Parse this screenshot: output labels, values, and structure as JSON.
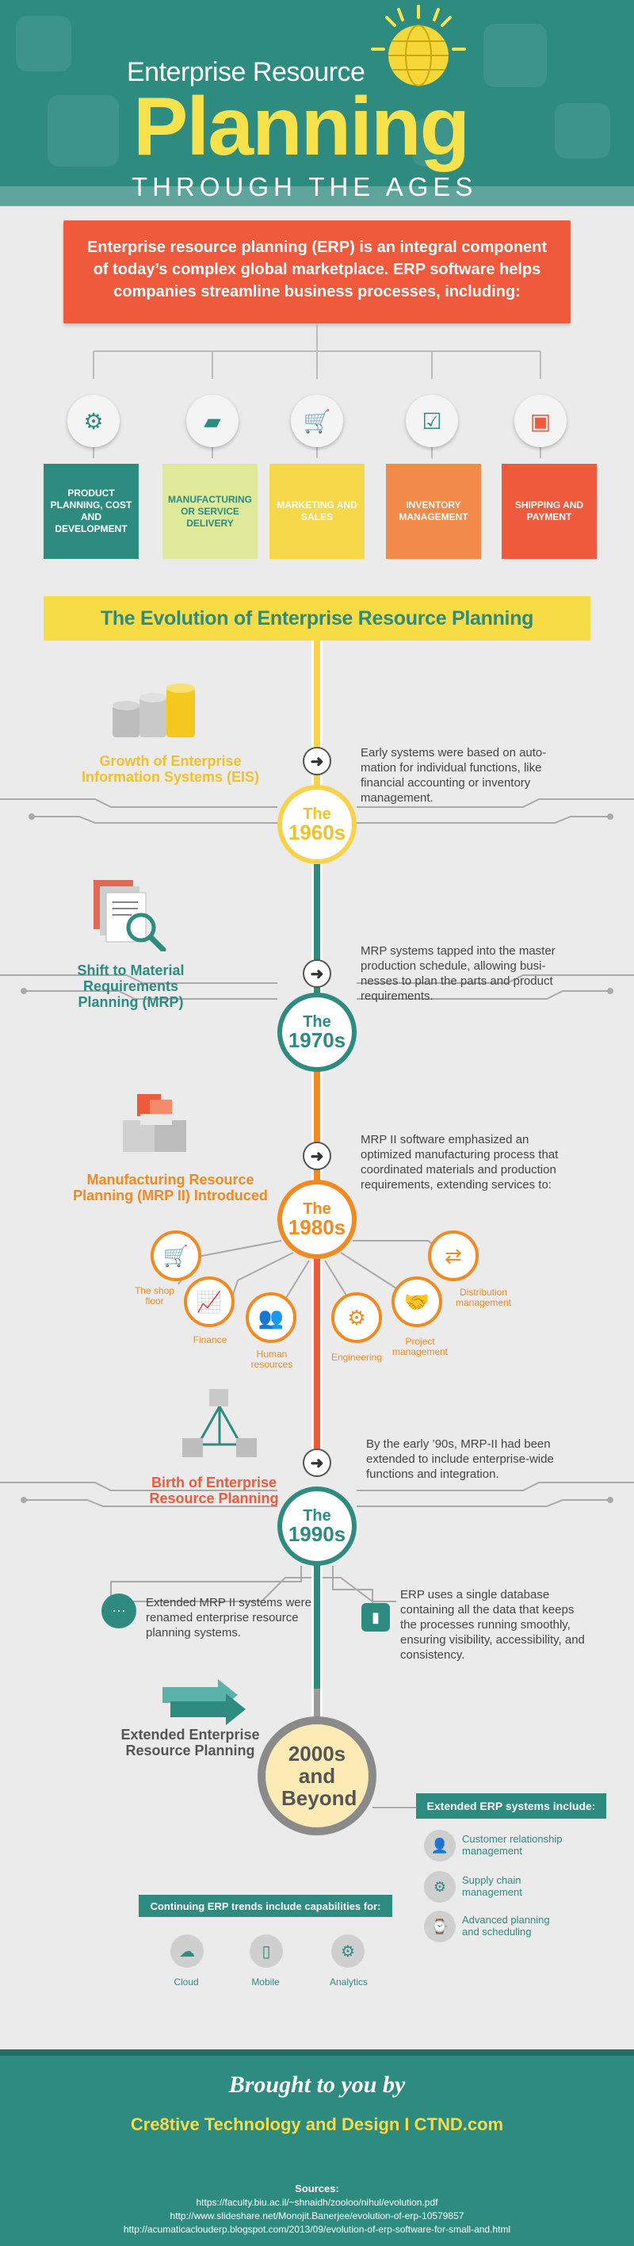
{
  "header": {
    "title_small": "Enterprise Resource",
    "title_big": "Planning",
    "title_sub": "THROUGH THE AGES"
  },
  "intro": {
    "text": "Enterprise resource planning (ERP) is an integral component of today’s complex global marketplace. ERP software helps companies streamline business processes, including:"
  },
  "categories": [
    {
      "label": "PRODUCT PLANNING, COST AND DEVELOPMENT",
      "color": "#2d8b80",
      "icon": "gear-icon"
    },
    {
      "label": "MANUFACTURING OR SERVICE DELIVERY",
      "color": "#dfe99a",
      "icon": "truck-icon"
    },
    {
      "label": "MARKETING AND SALES",
      "color": "#f6d84a",
      "icon": "cart-icon"
    },
    {
      "label": "INVENTORY MANAGEMENT",
      "color": "#f28a4a",
      "icon": "clipboard-icon"
    },
    {
      "label": "SHIPPING AND PAYMENT",
      "color": "#f05a3c",
      "icon": "hand-truck-icon"
    }
  ],
  "banner": "The Evolution of Enterprise Resource Planning",
  "eras": [
    {
      "decade_a": "The",
      "decade_b": "1960s",
      "title": "Growth of Enterprise Information Systems (EIS)",
      "desc": "Early systems were based on auto-mation for individual functions, like financial accounting or inventory management.",
      "color": "#f7d24a"
    },
    {
      "decade_a": "The",
      "decade_b": "1970s",
      "title": "Shift to Material Requirements Planning (MRP)",
      "desc": "MRP systems tapped into the master production schedule, allowing busi-nesses to plan the parts and product requirements.",
      "color": "#2d8b80"
    },
    {
      "decade_a": "The",
      "decade_b": "1980s",
      "title": "Manufacturing Resource Planning (MRP II) Introduced",
      "desc": "MRP II software emphasized an optimized manufacturing process that coordinated materials and production requirements, extending services to:",
      "color": "#f28a1f"
    },
    {
      "decade_a": "The",
      "decade_b": "1990s",
      "title": "Birth of Enterprise Resource Planning",
      "desc": "By the early ’90s, MRP-II had been extended to include enterprise-wide functions and integration.",
      "color": "#2d8b80"
    }
  ],
  "mrp2_services": [
    "The shop floor",
    "Finance",
    "Human resources",
    "Engineering",
    "Project management",
    "Distribution management"
  ],
  "nineties_left": "Extended MRP II systems were renamed enterprise resource planning systems.",
  "nineties_right": "ERP uses a single database containing all the data that keeps the processes running smoothly, ensuring visibility, accessibility, and consistency.",
  "beyond": {
    "title": "Extended Enterprise Resource Planning",
    "circle": "2000s and Beyond",
    "ext_header": "Extended ERP systems include:",
    "ext_items": [
      "Customer relationship management",
      "Supply chain management",
      "Advanced planning and scheduling"
    ],
    "trends_header": "Continuing ERP trends include capabilities for:",
    "trends": [
      "Cloud",
      "Mobile",
      "Analytics"
    ]
  },
  "footer": {
    "brought": "Brought to you by",
    "company": "Cre8tive Technology and Design I CTND.com",
    "sources_label": "Sources:",
    "sources": [
      "https://faculty.biu.ac.il/~shnaidh/zooloo/nihul/evolution.pdf",
      "http://www.slideshare.net/Monojit.Banerjee/evolution-of-erp-10579857",
      "http://acumaticaclouderp.blogspot.com/2013/09/evolution-of-erp-software-for-small-and.html"
    ]
  },
  "colors": {
    "teal": "#2d8b80",
    "yellow": "#f7dc45",
    "orange": "#f28a1f",
    "red": "#f05a3c",
    "gray": "#8a8a8a"
  }
}
